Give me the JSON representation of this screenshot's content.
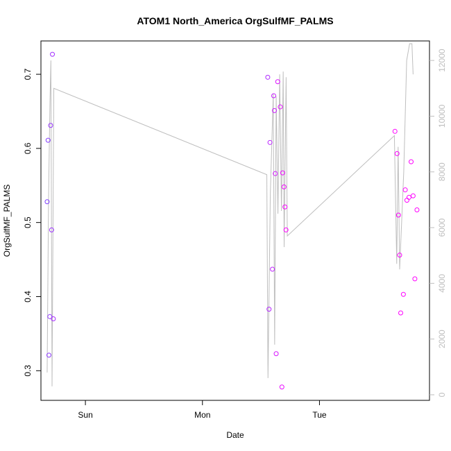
{
  "chart_data": {
    "type": "scatter",
    "title": "ATOM1 North_America OrgSulfMF_PALMS",
    "xlabel": "Date",
    "ylabel": "OrgSulfMF_PALMS",
    "x_tick_labels": [
      "Sun",
      "Mon",
      "Tue"
    ],
    "x_tick_values_days": [
      1,
      2,
      3
    ],
    "xlim_days": [
      0.62,
      3.94
    ],
    "y_left": {
      "ylim": [
        0.26,
        0.745
      ],
      "ticks": [
        0.3,
        0.4,
        0.5,
        0.6,
        0.7
      ],
      "tick_labels": [
        "0.3",
        "0.4",
        "0.5",
        "0.6",
        "0.7"
      ]
    },
    "y_right": {
      "ylim": [
        -200,
        12700
      ],
      "ticks": [
        0,
        2000,
        4000,
        6000,
        8000,
        10000,
        12000
      ],
      "tick_labels": [
        "0",
        "2000",
        "4000",
        "6000",
        "8000",
        "10000",
        "12000"
      ],
      "color": "#bebebe"
    },
    "series": [
      {
        "kind": "points",
        "color_start": "#7f3fff",
        "color_end": "#ff00ff",
        "points": [
          {
            "x": 0.673,
            "y": 0.528
          },
          {
            "x": 0.681,
            "y": 0.611
          },
          {
            "x": 0.688,
            "y": 0.321
          },
          {
            "x": 0.696,
            "y": 0.373
          },
          {
            "x": 0.703,
            "y": 0.631
          },
          {
            "x": 0.711,
            "y": 0.49
          },
          {
            "x": 0.718,
            "y": 0.727
          },
          {
            "x": 0.726,
            "y": 0.37
          },
          {
            "x": 2.558,
            "y": 0.696
          },
          {
            "x": 2.569,
            "y": 0.383
          },
          {
            "x": 2.577,
            "y": 0.608
          },
          {
            "x": 2.598,
            "y": 0.437
          },
          {
            "x": 2.609,
            "y": 0.671
          },
          {
            "x": 2.615,
            "y": 0.651
          },
          {
            "x": 2.622,
            "y": 0.566
          },
          {
            "x": 2.63,
            "y": 0.323
          },
          {
            "x": 2.643,
            "y": 0.69
          },
          {
            "x": 2.665,
            "y": 0.656
          },
          {
            "x": 2.679,
            "y": 0.278
          },
          {
            "x": 2.685,
            "y": 0.567
          },
          {
            "x": 2.697,
            "y": 0.548
          },
          {
            "x": 2.705,
            "y": 0.521
          },
          {
            "x": 2.714,
            "y": 0.49
          },
          {
            "x": 3.645,
            "y": 0.623
          },
          {
            "x": 3.663,
            "y": 0.593
          },
          {
            "x": 3.675,
            "y": 0.51
          },
          {
            "x": 3.685,
            "y": 0.456
          },
          {
            "x": 3.694,
            "y": 0.378
          },
          {
            "x": 3.717,
            "y": 0.403
          },
          {
            "x": 3.733,
            "y": 0.544
          },
          {
            "x": 3.747,
            "y": 0.53
          },
          {
            "x": 3.765,
            "y": 0.534
          },
          {
            "x": 3.783,
            "y": 0.582
          },
          {
            "x": 3.8,
            "y": 0.536
          },
          {
            "x": 3.815,
            "y": 0.424
          },
          {
            "x": 3.833,
            "y": 0.517
          }
        ]
      },
      {
        "kind": "line",
        "axis": "right",
        "color": "#bebebe",
        "points": [
          {
            "x": 0.673,
            "y": 800
          },
          {
            "x": 0.685,
            "y": 7000
          },
          {
            "x": 0.697,
            "y": 10500
          },
          {
            "x": 0.705,
            "y": 12000
          },
          {
            "x": 0.715,
            "y": 300
          },
          {
            "x": 0.73,
            "y": 11000
          },
          {
            "x": 2.55,
            "y": 7900
          },
          {
            "x": 2.56,
            "y": 600
          },
          {
            "x": 2.58,
            "y": 7200
          },
          {
            "x": 2.605,
            "y": 10800
          },
          {
            "x": 2.617,
            "y": 1800
          },
          {
            "x": 2.63,
            "y": 10700
          },
          {
            "x": 2.645,
            "y": 6500
          },
          {
            "x": 2.66,
            "y": 11500
          },
          {
            "x": 2.675,
            "y": 6600
          },
          {
            "x": 2.69,
            "y": 11600
          },
          {
            "x": 2.698,
            "y": 5300
          },
          {
            "x": 2.715,
            "y": 11400
          },
          {
            "x": 2.725,
            "y": 5700
          },
          {
            "x": 3.64,
            "y": 9300
          },
          {
            "x": 3.66,
            "y": 4700
          },
          {
            "x": 3.672,
            "y": 8900
          },
          {
            "x": 3.685,
            "y": 4500
          },
          {
            "x": 3.72,
            "y": 8000
          },
          {
            "x": 3.745,
            "y": 12000
          },
          {
            "x": 3.77,
            "y": 12600
          },
          {
            "x": 3.79,
            "y": 12600
          },
          {
            "x": 3.8,
            "y": 11500
          }
        ]
      }
    ]
  }
}
